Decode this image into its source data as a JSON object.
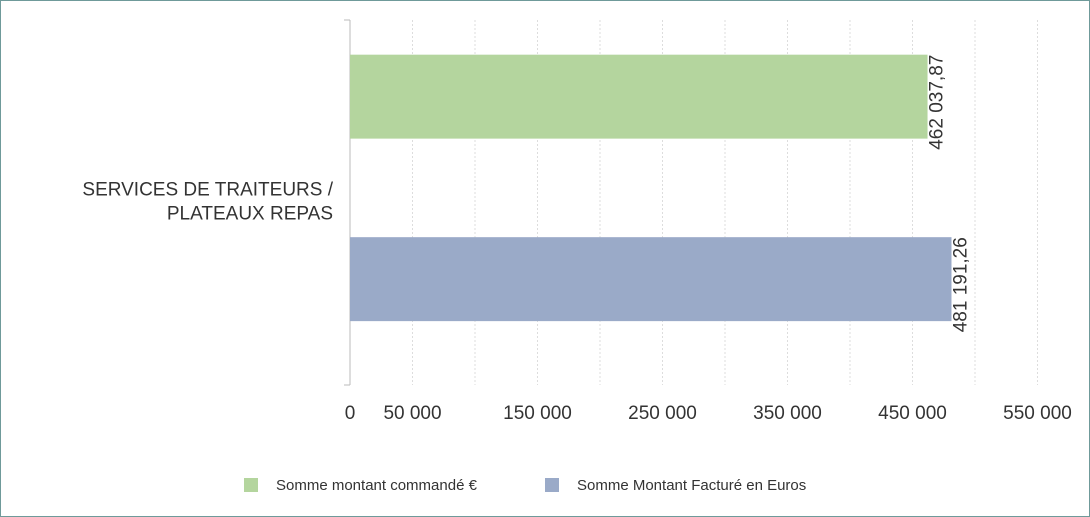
{
  "chart_data": {
    "type": "hbar",
    "categories": [
      "SERVICES DE TRAITEURS / PLATEAUX REPAS"
    ],
    "series": [
      {
        "name": "Somme montant commandé €",
        "color": "#b4d59e",
        "values": [
          462037.87
        ],
        "value_labels": [
          "462 037,87"
        ]
      },
      {
        "name": "Somme Montant Facturé en Euros",
        "color": "#9aaac8",
        "values": [
          481191.26
        ],
        "value_labels": [
          "481 191,26"
        ]
      }
    ],
    "xlim": [
      0,
      584000
    ],
    "xticks": [
      0,
      {
        "value": 50000,
        "label": "50 000"
      },
      {
        "value": 150000,
        "label": "150 000"
      },
      {
        "value": 250000,
        "label": "250 000"
      },
      {
        "value": 350000,
        "label": "350 000"
      },
      {
        "value": 450000,
        "label": "450 000"
      },
      {
        "value": 550000,
        "label": "550 000"
      }
    ],
    "minor_xticks": [
      100000,
      200000,
      300000,
      400000,
      500000
    ],
    "grid": true,
    "legend": "bottom"
  }
}
